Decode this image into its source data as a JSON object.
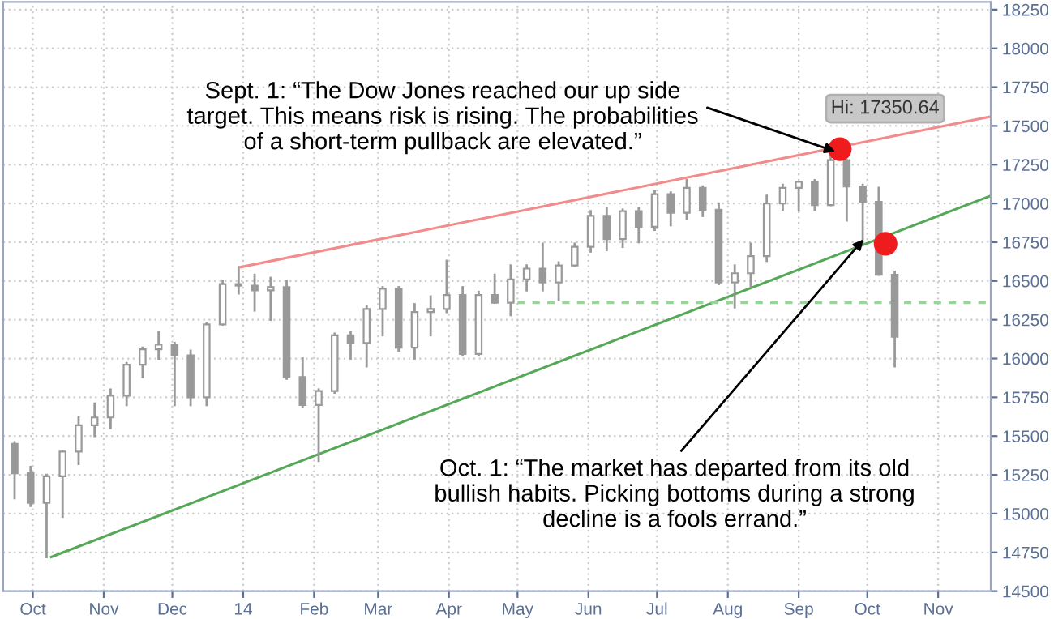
{
  "chart_data": {
    "type": "candlestick",
    "x": [
      "2013-09-23",
      "2013-09-30",
      "2013-10-07",
      "2013-10-14",
      "2013-10-21",
      "2013-10-28",
      "2013-11-04",
      "2013-11-11",
      "2013-11-18",
      "2013-11-25",
      "2013-12-02",
      "2013-12-09",
      "2013-12-16",
      "2013-12-23",
      "2013-12-30",
      "2014-01-06",
      "2014-01-13",
      "2014-01-20",
      "2014-01-27",
      "2014-02-03",
      "2014-02-10",
      "2014-02-17",
      "2014-02-24",
      "2014-03-03",
      "2014-03-10",
      "2014-03-17",
      "2014-03-24",
      "2014-03-31",
      "2014-04-07",
      "2014-04-14",
      "2014-04-21",
      "2014-04-28",
      "2014-05-05",
      "2014-05-12",
      "2014-05-19",
      "2014-05-26",
      "2014-06-02",
      "2014-06-09",
      "2014-06-16",
      "2014-06-23",
      "2014-06-30",
      "2014-07-07",
      "2014-07-14",
      "2014-07-21",
      "2014-07-28",
      "2014-08-04",
      "2014-08-11",
      "2014-08-18",
      "2014-08-25",
      "2014-09-01",
      "2014-09-08",
      "2014-09-15",
      "2014-09-22",
      "2014-09-29",
      "2014-10-06",
      "2014-10-13"
    ],
    "ohlc": [
      [
        15450,
        15460,
        15100,
        15260
      ],
      [
        15260,
        15300,
        15050,
        15070
      ],
      [
        15070,
        15250,
        14720,
        15240
      ],
      [
        15240,
        15400,
        14980,
        15400
      ],
      [
        15400,
        15620,
        15320,
        15570
      ],
      [
        15570,
        15710,
        15500,
        15620
      ],
      [
        15620,
        15800,
        15550,
        15760
      ],
      [
        15760,
        15970,
        15700,
        15960
      ],
      [
        15960,
        16070,
        15880,
        16060
      ],
      [
        16060,
        16170,
        16000,
        16090
      ],
      [
        16090,
        16100,
        15700,
        16020
      ],
      [
        16020,
        16050,
        15700,
        15750
      ],
      [
        15750,
        16230,
        15700,
        16220
      ],
      [
        16220,
        16500,
        16220,
        16480
      ],
      [
        16480,
        16590,
        16420,
        16470
      ],
      [
        16470,
        16540,
        16310,
        16440
      ],
      [
        16440,
        16520,
        16250,
        16460
      ],
      [
        16460,
        16500,
        15870,
        15880
      ],
      [
        15880,
        16000,
        15690,
        15700
      ],
      [
        15700,
        15800,
        15340,
        15790
      ],
      [
        15790,
        16160,
        15780,
        16150
      ],
      [
        16150,
        16170,
        16000,
        16100
      ],
      [
        16100,
        16340,
        15950,
        16320
      ],
      [
        16320,
        16460,
        16150,
        16450
      ],
      [
        16450,
        16460,
        16050,
        16070
      ],
      [
        16070,
        16350,
        16000,
        16300
      ],
      [
        16300,
        16400,
        16150,
        16320
      ],
      [
        16320,
        16630,
        16300,
        16410
      ],
      [
        16410,
        16460,
        16020,
        16030
      ],
      [
        16030,
        16430,
        16020,
        16410
      ],
      [
        16410,
        16540,
        16360,
        16360
      ],
      [
        16360,
        16600,
        16280,
        16510
      ],
      [
        16510,
        16600,
        16440,
        16580
      ],
      [
        16580,
        16740,
        16440,
        16490
      ],
      [
        16490,
        16620,
        16380,
        16600
      ],
      [
        16600,
        16740,
        16600,
        16720
      ],
      [
        16720,
        16950,
        16690,
        16920
      ],
      [
        16920,
        16970,
        16700,
        16770
      ],
      [
        16770,
        16960,
        16720,
        16950
      ],
      [
        16950,
        16970,
        16750,
        16850
      ],
      [
        16850,
        17080,
        16830,
        17060
      ],
      [
        17060,
        17070,
        16860,
        16940
      ],
      [
        16940,
        17150,
        16900,
        17100
      ],
      [
        17100,
        17110,
        16920,
        16960
      ],
      [
        16960,
        17000,
        16480,
        16490
      ],
      [
        16490,
        16600,
        16330,
        16550
      ],
      [
        16550,
        16740,
        16460,
        16660
      ],
      [
        16660,
        17050,
        16630,
        17000
      ],
      [
        17000,
        17120,
        16960,
        17100
      ],
      [
        17100,
        17140,
        16960,
        17140
      ],
      [
        17140,
        17150,
        16960,
        16990
      ],
      [
        16990,
        17350.64,
        16990,
        17280
      ],
      [
        17280,
        17280,
        16890,
        17110
      ],
      [
        17110,
        17120,
        16770,
        17010
      ],
      [
        17010,
        17100,
        16540,
        16540
      ],
      [
        16540,
        16560,
        15950,
        16140
      ]
    ],
    "color": "#999999",
    "series": [
      {
        "type": "line",
        "color": "#f28b8b",
        "x": [
          "2013-12-31",
          "2014-11-24"
        ],
        "values": [
          16590,
          17560
        ]
      },
      {
        "type": "line",
        "color": "#55a855",
        "x": [
          "2013-10-09",
          "2014-11-24"
        ],
        "values": [
          14720,
          17050
        ]
      },
      {
        "type": "line",
        "color": "#99d499",
        "line_style": "dashed",
        "x": [
          "2014-05-01",
          "2014-11-24"
        ],
        "values": [
          16360,
          16360
        ]
      },
      {
        "type": "scatter",
        "color": "#ee1c1c",
        "marker": "circle",
        "x": [
          "2014-09-19",
          "2014-10-09"
        ],
        "values": [
          17350,
          16740
        ]
      }
    ],
    "annotations": [
      {
        "text": "Sept. 1: “The Dow Jones reached our up side target. This means risk is rising. The probabilities of a short-term pullback are elevated.”",
        "x": "2014-09-18",
        "y": 17330
      },
      {
        "text": "Oct. 1: “The market has departed from its old bullish habits. Picking bottoms during a strong decline is a fools errand.”",
        "x": "2014-09-30",
        "y": 16780
      },
      {
        "text": "Hi: 17350.64",
        "x": "2014-09-19",
        "y": 17350.64
      }
    ],
    "xlim": [
      "2013-09-18",
      "2014-11-24"
    ],
    "xticks": [
      {
        "value": "2013-10-01",
        "label": "Oct"
      },
      {
        "value": "2013-11-01",
        "label": "Nov"
      },
      {
        "value": "2013-12-01",
        "label": "Dec"
      },
      {
        "value": "2014-01-01",
        "label": "14"
      },
      {
        "value": "2014-02-01",
        "label": "Feb"
      },
      {
        "value": "2014-03-01",
        "label": "Mar"
      },
      {
        "value": "2014-04-01",
        "label": "Apr"
      },
      {
        "value": "2014-05-01",
        "label": "May"
      },
      {
        "value": "2014-06-01",
        "label": "Jun"
      },
      {
        "value": "2014-07-01",
        "label": "Jul"
      },
      {
        "value": "2014-08-01",
        "label": "Aug"
      },
      {
        "value": "2014-09-01",
        "label": "Sep"
      },
      {
        "value": "2014-10-01",
        "label": "Oct"
      },
      {
        "value": "2014-11-01",
        "label": "Nov"
      }
    ],
    "ylim": [
      14500,
      18300
    ],
    "yticks": [
      14500,
      14750,
      15000,
      15250,
      15500,
      15750,
      16000,
      16250,
      16500,
      16750,
      17000,
      17250,
      17500,
      17750,
      18000,
      18250
    ],
    "grid": true
  }
}
